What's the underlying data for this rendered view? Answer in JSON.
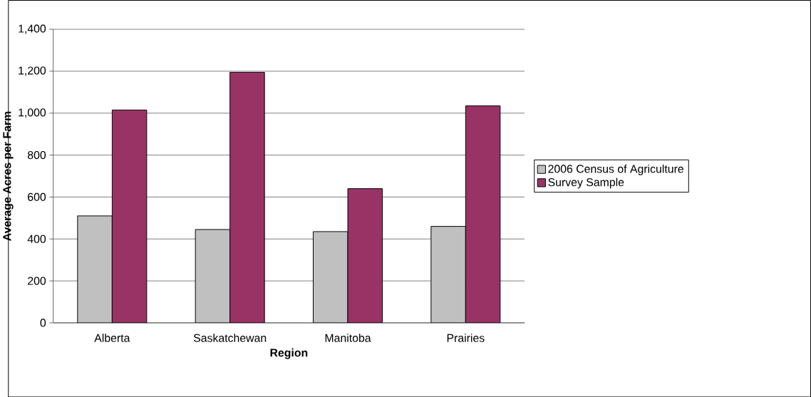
{
  "chart_data": {
    "type": "bar",
    "xlabel": "Region",
    "ylabel": "Average Acres per Farm",
    "categories": [
      "Alberta",
      "Saskatchewan",
      "Manitoba",
      "Prairies"
    ],
    "series": [
      {
        "name": "2006 Census of Agriculture",
        "color": "#c0c0c0",
        "values": [
          510,
          445,
          435,
          460
        ]
      },
      {
        "name": "Survey Sample",
        "color": "#993366",
        "values": [
          1015,
          1195,
          640,
          1035
        ]
      }
    ],
    "ylim": [
      0,
      1400
    ],
    "yticks": [
      {
        "value": 0,
        "label": "0"
      },
      {
        "value": 200,
        "label": "200"
      },
      {
        "value": 400,
        "label": "400"
      },
      {
        "value": 600,
        "label": "600"
      },
      {
        "value": 800,
        "label": "800"
      },
      {
        "value": 1000,
        "label": "1,000"
      },
      {
        "value": 1200,
        "label": "1,200"
      },
      {
        "value": 1400,
        "label": "1,400"
      }
    ],
    "grid": "y",
    "legend": "right"
  }
}
